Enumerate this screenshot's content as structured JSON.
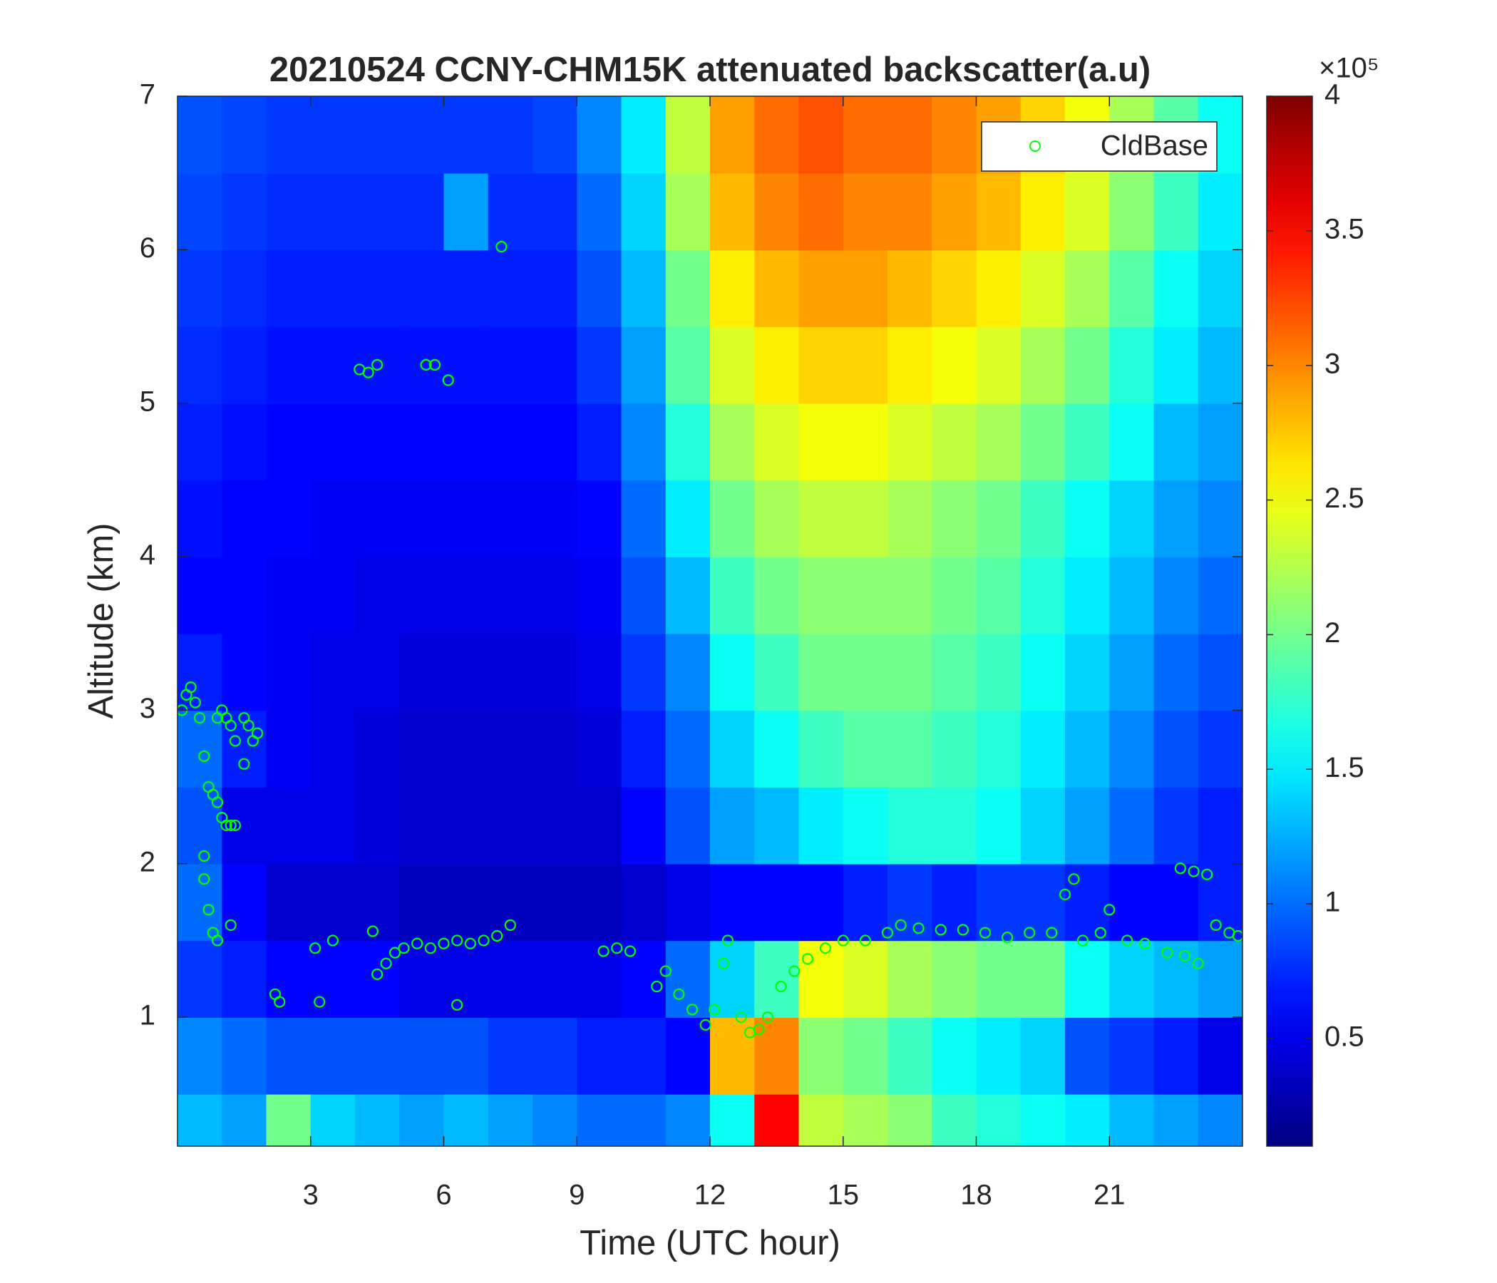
{
  "chart_data": {
    "type": "heatmap",
    "title": "20210524 CCNY-CHM15K attenuated backscatter(a.u)",
    "x_label": "Time (UTC hour)",
    "y_label": "Altitude (km)",
    "xlim": [
      0,
      24
    ],
    "ylim": [
      0.16,
      7
    ],
    "xticks": [
      3,
      6,
      9,
      12,
      15,
      18,
      21
    ],
    "yticks": [
      1,
      2,
      3,
      4,
      5,
      6,
      7
    ],
    "colormap": "jet",
    "clim": [
      0.1,
      4
    ],
    "cticks": [
      0.5,
      1,
      1.5,
      2,
      2.5,
      3,
      3.5,
      4
    ],
    "colorbar_multiplier": "×10⁵",
    "legend": "upper right",
    "x": [
      0.5,
      1.5,
      2.5,
      3.5,
      4.5,
      5.5,
      6.5,
      7.5,
      8.5,
      9.5,
      10.5,
      11.5,
      12.5,
      13.5,
      14.5,
      15.5,
      16.5,
      17.5,
      18.5,
      19.5,
      20.5,
      21.5,
      22.5,
      23.5
    ],
    "y": [
      0.25,
      0.75,
      1.25,
      1.75,
      2.25,
      2.75,
      3.25,
      3.75,
      4.25,
      4.75,
      5.25,
      5.75,
      6.25,
      6.75
    ],
    "z": [
      [
        1.3,
        1.2,
        2.0,
        1.4,
        1.3,
        1.2,
        1.3,
        1.2,
        1.1,
        1.0,
        1.0,
        1.1,
        1.6,
        3.5,
        2.3,
        2.2,
        2.1,
        1.8,
        1.7,
        1.6,
        1.5,
        1.3,
        1.2,
        1.1
      ],
      [
        1.1,
        1.0,
        0.9,
        0.9,
        0.9,
        0.9,
        0.9,
        0.8,
        0.8,
        0.7,
        0.7,
        0.6,
        2.8,
        3.0,
        2.1,
        2.0,
        1.8,
        1.6,
        1.5,
        1.4,
        0.9,
        0.8,
        0.7,
        0.5
      ],
      [
        0.8,
        0.7,
        0.6,
        0.6,
        0.6,
        0.5,
        0.5,
        0.5,
        0.5,
        0.5,
        0.6,
        1.0,
        1.4,
        1.8,
        2.5,
        2.4,
        2.2,
        2.1,
        2.0,
        2.0,
        1.6,
        1.4,
        1.3,
        1.2
      ],
      [
        1.0,
        0.6,
        0.4,
        0.4,
        0.4,
        0.35,
        0.35,
        0.35,
        0.35,
        0.35,
        0.4,
        0.5,
        0.6,
        0.6,
        0.6,
        0.7,
        0.8,
        0.7,
        0.8,
        0.8,
        0.7,
        0.6,
        0.6,
        0.7
      ],
      [
        0.9,
        0.5,
        0.5,
        0.5,
        0.45,
        0.4,
        0.4,
        0.4,
        0.4,
        0.4,
        0.6,
        0.9,
        1.2,
        1.3,
        1.5,
        1.6,
        1.7,
        1.7,
        1.6,
        1.4,
        1.2,
        1.0,
        0.8,
        0.7
      ],
      [
        1.0,
        0.7,
        0.55,
        0.5,
        0.45,
        0.4,
        0.4,
        0.4,
        0.4,
        0.45,
        0.7,
        1.0,
        1.4,
        1.6,
        1.8,
        1.9,
        1.9,
        1.8,
        1.7,
        1.5,
        1.3,
        1.1,
        0.9,
        0.8
      ],
      [
        0.7,
        0.6,
        0.55,
        0.5,
        0.5,
        0.45,
        0.45,
        0.45,
        0.45,
        0.5,
        0.8,
        1.1,
        1.6,
        1.8,
        2.0,
        2.0,
        2.0,
        1.9,
        1.8,
        1.6,
        1.4,
        1.2,
        1.0,
        0.9
      ],
      [
        0.6,
        0.6,
        0.55,
        0.55,
        0.5,
        0.5,
        0.5,
        0.5,
        0.5,
        0.55,
        0.9,
        1.3,
        1.8,
        2.0,
        2.1,
        2.1,
        2.1,
        2.0,
        1.9,
        1.7,
        1.5,
        1.3,
        1.1,
        1.0
      ],
      [
        0.65,
        0.6,
        0.6,
        0.55,
        0.55,
        0.55,
        0.55,
        0.55,
        0.55,
        0.6,
        1.0,
        1.5,
        2.0,
        2.2,
        2.3,
        2.3,
        2.2,
        2.1,
        2.0,
        1.8,
        1.6,
        1.4,
        1.2,
        1.1
      ],
      [
        0.7,
        0.65,
        0.6,
        0.6,
        0.6,
        0.6,
        0.6,
        0.6,
        0.6,
        0.7,
        1.1,
        1.7,
        2.2,
        2.4,
        2.5,
        2.5,
        2.4,
        2.3,
        2.2,
        2.0,
        1.8,
        1.6,
        1.3,
        1.2
      ],
      [
        0.75,
        0.7,
        0.65,
        0.65,
        0.65,
        0.65,
        0.65,
        0.65,
        0.65,
        0.8,
        1.2,
        1.9,
        2.4,
        2.6,
        2.7,
        2.7,
        2.6,
        2.5,
        2.4,
        2.2,
        2.0,
        1.7,
        1.5,
        1.3
      ],
      [
        0.8,
        0.75,
        0.7,
        0.7,
        0.7,
        0.7,
        0.7,
        0.7,
        0.7,
        0.9,
        1.3,
        2.0,
        2.6,
        2.8,
        2.9,
        2.9,
        2.8,
        2.7,
        2.6,
        2.4,
        2.2,
        1.9,
        1.6,
        1.4
      ],
      [
        0.85,
        0.8,
        0.75,
        0.75,
        0.75,
        0.75,
        1.2,
        0.75,
        0.75,
        1.0,
        1.4,
        2.2,
        2.8,
        3.0,
        3.1,
        3.0,
        3.0,
        2.9,
        2.8,
        2.6,
        2.4,
        2.1,
        1.8,
        1.5
      ],
      [
        0.9,
        0.85,
        0.8,
        0.8,
        0.8,
        0.8,
        0.8,
        0.8,
        0.85,
        1.1,
        1.5,
        2.3,
        2.9,
        3.1,
        3.2,
        3.1,
        3.1,
        3.0,
        2.9,
        2.7,
        2.5,
        2.2,
        1.9,
        1.6
      ]
    ],
    "series": [
      {
        "name": "CldBase",
        "type": "scatter",
        "color": "#00ff00",
        "x": [
          0.1,
          0.2,
          0.3,
          0.4,
          0.5,
          0.6,
          0.7,
          0.8,
          0.9,
          0.6,
          0.9,
          1.0,
          1.1,
          1.2,
          1.3,
          0.6,
          0.7,
          0.8,
          0.9,
          1.0,
          1.1,
          1.2,
          1.3,
          1.5,
          1.6,
          1.7,
          1.8,
          1.5,
          1.2,
          2.2,
          2.3,
          3.1,
          3.2,
          3.5,
          4.1,
          4.3,
          4.5,
          5.6,
          5.8,
          6.1,
          7.3,
          4.4,
          4.5,
          4.7,
          4.9,
          5.1,
          5.4,
          5.7,
          6.0,
          6.3,
          6.6,
          6.9,
          7.2,
          7.5,
          6.3,
          9.6,
          9.9,
          10.2,
          10.8,
          11.0,
          11.3,
          11.6,
          11.9,
          12.1,
          12.3,
          12.4,
          12.7,
          12.9,
          13.1,
          13.3,
          13.6,
          13.9,
          14.2,
          14.6,
          15.0,
          15.5,
          16.0,
          16.3,
          16.7,
          17.2,
          17.7,
          18.2,
          18.7,
          19.2,
          19.7,
          20.0,
          20.2,
          20.4,
          20.8,
          21.0,
          21.4,
          21.8,
          22.3,
          22.7,
          23.0,
          22.6,
          22.9,
          23.2,
          23.4,
          23.7,
          23.9
        ],
        "y": [
          3.0,
          3.1,
          3.15,
          3.05,
          2.95,
          1.9,
          1.7,
          1.55,
          1.5,
          2.05,
          2.95,
          3.0,
          2.95,
          2.9,
          2.8,
          2.7,
          2.5,
          2.45,
          2.4,
          2.3,
          2.25,
          2.25,
          2.25,
          2.95,
          2.9,
          2.8,
          2.85,
          2.65,
          1.6,
          1.15,
          1.1,
          1.45,
          1.1,
          1.5,
          5.22,
          5.2,
          5.25,
          5.25,
          5.25,
          5.15,
          6.02,
          1.56,
          1.28,
          1.35,
          1.42,
          1.45,
          1.48,
          1.45,
          1.48,
          1.5,
          1.48,
          1.5,
          1.53,
          1.6,
          1.08,
          1.43,
          1.45,
          1.43,
          1.2,
          1.3,
          1.15,
          1.05,
          0.95,
          1.05,
          1.35,
          1.5,
          1.0,
          0.9,
          0.92,
          1.0,
          1.2,
          1.3,
          1.38,
          1.45,
          1.5,
          1.5,
          1.55,
          1.6,
          1.58,
          1.57,
          1.57,
          1.55,
          1.52,
          1.55,
          1.55,
          1.8,
          1.9,
          1.5,
          1.55,
          1.7,
          1.5,
          1.48,
          1.42,
          1.4,
          1.35,
          1.97,
          1.95,
          1.93,
          1.6,
          1.55,
          1.53
        ]
      }
    ]
  }
}
